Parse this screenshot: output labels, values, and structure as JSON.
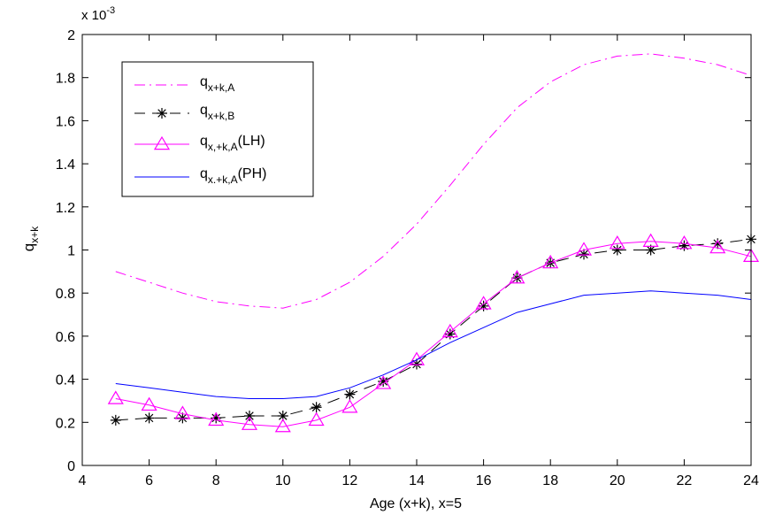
{
  "chart_data": {
    "type": "line",
    "title": "",
    "xlabel": "Age (x+k), x=5",
    "ylabel": {
      "base": "q",
      "sub": "x+k"
    },
    "y_multiplier": "x 10",
    "y_multiplier_exp": "-3",
    "xlim": [
      4,
      24
    ],
    "ylim": [
      0,
      2
    ],
    "xticks": [
      4,
      6,
      8,
      10,
      12,
      14,
      16,
      18,
      20,
      22,
      24
    ],
    "yticks": [
      0,
      0.2,
      0.4,
      0.6,
      0.8,
      1,
      1.2,
      1.4,
      1.6,
      1.8,
      2
    ],
    "ytick_labels": [
      "0",
      "0.2",
      "0.4",
      "0.6",
      "0.8",
      "1",
      "1.2",
      "1.4",
      "1.6",
      "1.8",
      "2"
    ],
    "grid": false,
    "legend_position": "top-left",
    "x": [
      5,
      6,
      7,
      8,
      9,
      10,
      11,
      12,
      13,
      14,
      15,
      16,
      17,
      18,
      19,
      20,
      21,
      22,
      23,
      24
    ],
    "series": [
      {
        "legend": {
          "base": "q",
          "sub": "x+k,A",
          "suffix": ""
        },
        "color": "#ff00ff",
        "dash": "dashdot",
        "marker": "none",
        "values": [
          0.9,
          0.85,
          0.8,
          0.76,
          0.74,
          0.73,
          0.77,
          0.85,
          0.97,
          1.12,
          1.3,
          1.49,
          1.66,
          1.78,
          1.86,
          1.9,
          1.91,
          1.89,
          1.86,
          1.81
        ]
      },
      {
        "legend": {
          "base": "q",
          "sub": "x+k,B",
          "suffix": ""
        },
        "color": "#000000",
        "dash": "dashed",
        "marker": "star",
        "values": [
          0.21,
          0.22,
          0.22,
          0.22,
          0.23,
          0.23,
          0.27,
          0.33,
          0.39,
          0.47,
          0.61,
          0.74,
          0.87,
          0.94,
          0.98,
          1.0,
          1.0,
          1.02,
          1.03,
          1.05
        ]
      },
      {
        "legend": {
          "base": "q",
          "sub": "x,+k,A",
          "suffix": "(LH)"
        },
        "color": "#ff00ff",
        "dash": "solid",
        "marker": "triangle",
        "values": [
          0.31,
          0.28,
          0.24,
          0.21,
          0.19,
          0.18,
          0.21,
          0.27,
          0.38,
          0.49,
          0.62,
          0.75,
          0.87,
          0.94,
          1.0,
          1.03,
          1.04,
          1.03,
          1.01,
          0.97
        ]
      },
      {
        "legend": {
          "base": "q",
          "sub": "x.+k,A",
          "suffix": "(PH)"
        },
        "color": "#0000ff",
        "dash": "solid",
        "marker": "none",
        "values": [
          0.38,
          0.36,
          0.34,
          0.32,
          0.31,
          0.31,
          0.32,
          0.36,
          0.42,
          0.49,
          0.57,
          0.64,
          0.71,
          0.75,
          0.79,
          0.8,
          0.81,
          0.8,
          0.79,
          0.77
        ]
      }
    ]
  }
}
